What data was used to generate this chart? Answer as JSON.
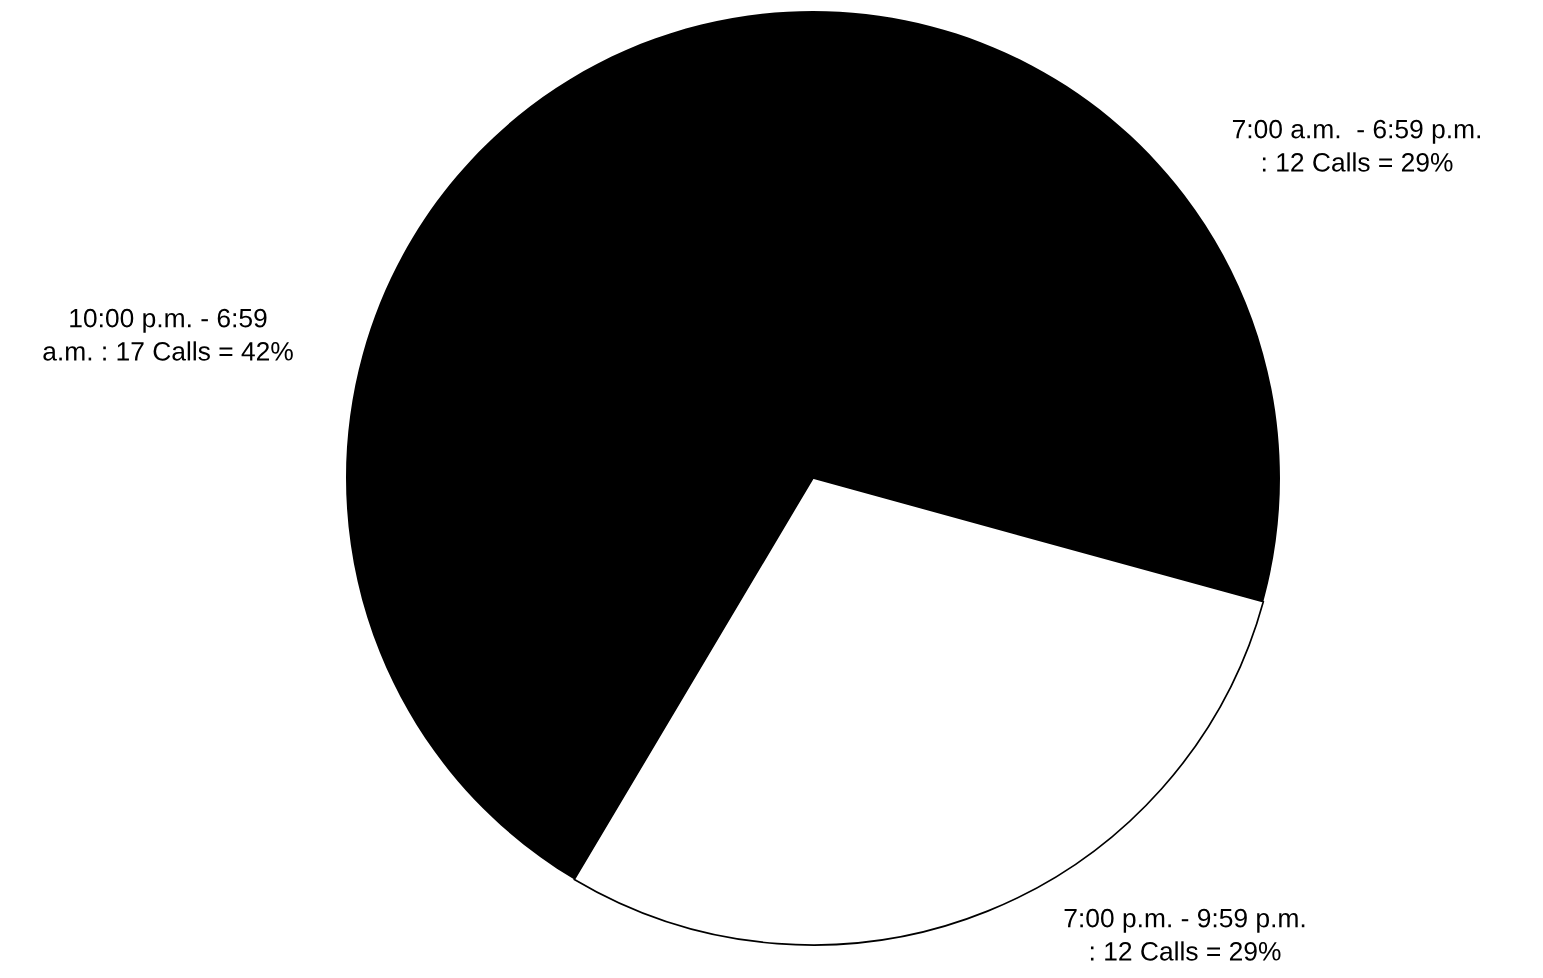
{
  "chart_data": {
    "type": "pie",
    "categories": [
      "7:00 p.m. - 9:59 p.m.\n: 12 Calls = 29%",
      "7:00 a.m.  - 6:59 p.m.\n: 12 Calls = 29%",
      "10:00 p.m. - 6:59\na.m. : 17 Calls = 42%"
    ],
    "values": [
      12,
      12,
      17
    ],
    "colors": [
      "#ffffff",
      "#000000",
      "#000000"
    ]
  }
}
